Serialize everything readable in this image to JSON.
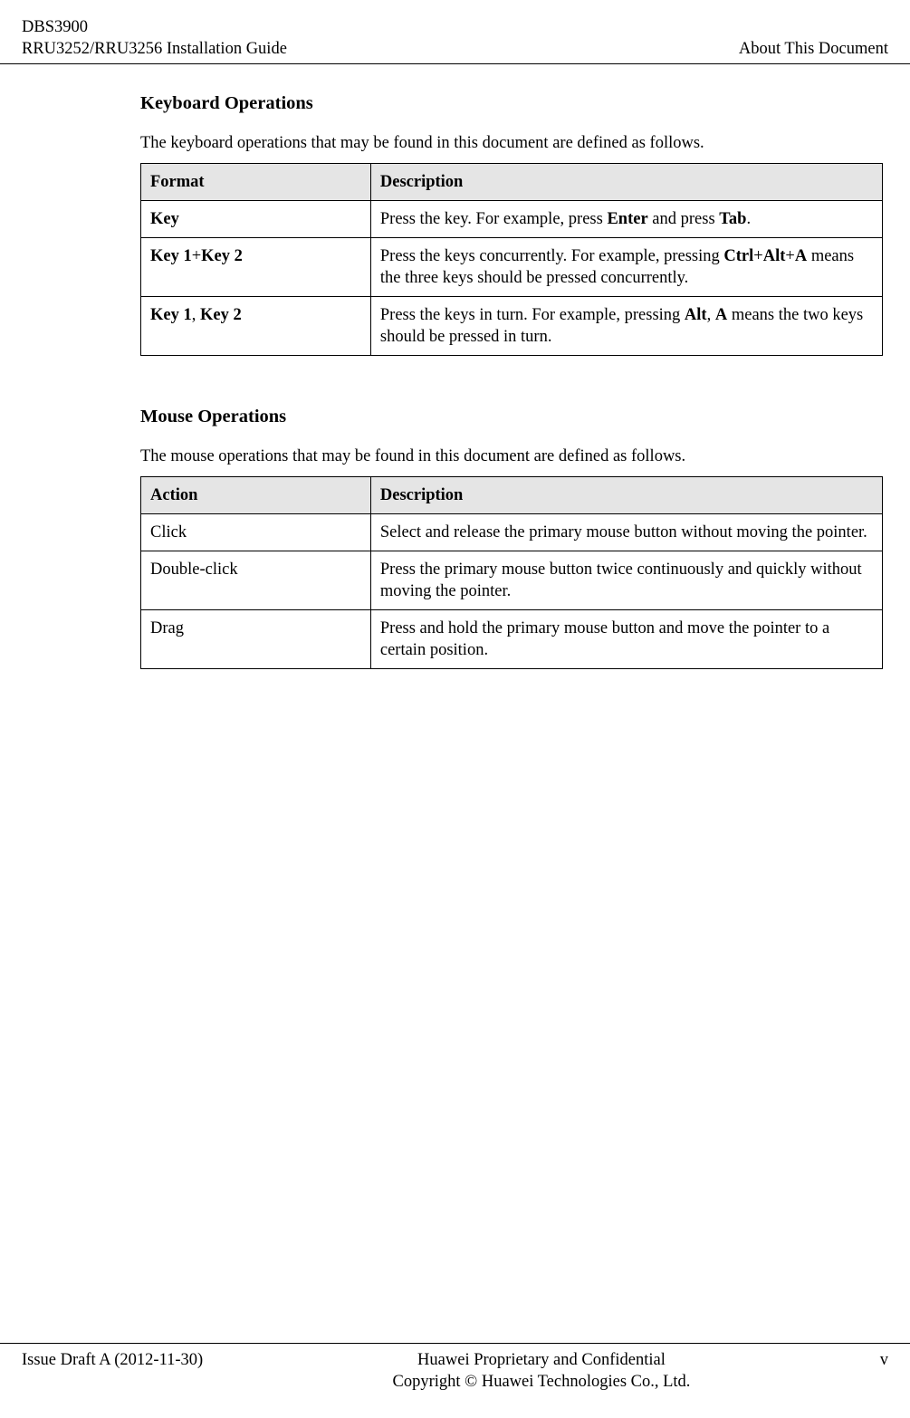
{
  "header": {
    "doc_code": "DBS3900",
    "doc_title": "RRU3252/RRU3256 Installation Guide",
    "chapter": "About This Document"
  },
  "sections": [
    {
      "title": "Keyboard Operations",
      "intro": "The keyboard operations that may be found in this document are defined as follows.",
      "columns": [
        "Format",
        "Description"
      ],
      "rows": [
        {
          "format_html": "<b>Key</b>",
          "desc_html": "Press the key. For example, press <b>Enter</b> and press <b>Tab</b>."
        },
        {
          "format_html": "<b>Key 1</b>+<b>Key 2</b>",
          "desc_html": "Press the keys concurrently. For example, pressing <b>Ctrl</b>+<b>Alt</b>+<b>A</b> means the three keys should be pressed concurrently."
        },
        {
          "format_html": "<b>Key 1</b>, <b>Key 2</b>",
          "desc_html": "Press the keys in turn. For example, pressing <b>Alt</b>, <b>A</b> means the two keys should be pressed in turn."
        }
      ]
    },
    {
      "title": "Mouse Operations",
      "intro": "The mouse operations that may be found in this document are defined as follows.",
      "columns": [
        "Action",
        "Description"
      ],
      "rows": [
        {
          "format_html": "Click",
          "desc_html": "Select and release the primary mouse button without moving the pointer."
        },
        {
          "format_html": "Double-click",
          "desc_html": "Press the primary mouse button twice continuously and quickly without moving the pointer."
        },
        {
          "format_html": "Drag",
          "desc_html": "Press and hold the primary mouse button and move the pointer to a certain position."
        }
      ]
    }
  ],
  "footer": {
    "issue": "Issue Draft A (2012-11-30)",
    "confidential": "Huawei Proprietary and Confidential",
    "copyright": "Copyright © Huawei Technologies Co., Ltd.",
    "page_num": "v"
  },
  "colors": {
    "background": "#ffffff",
    "text": "#000000",
    "table_header_bg": "#e5e5e5",
    "border": "#000000"
  }
}
